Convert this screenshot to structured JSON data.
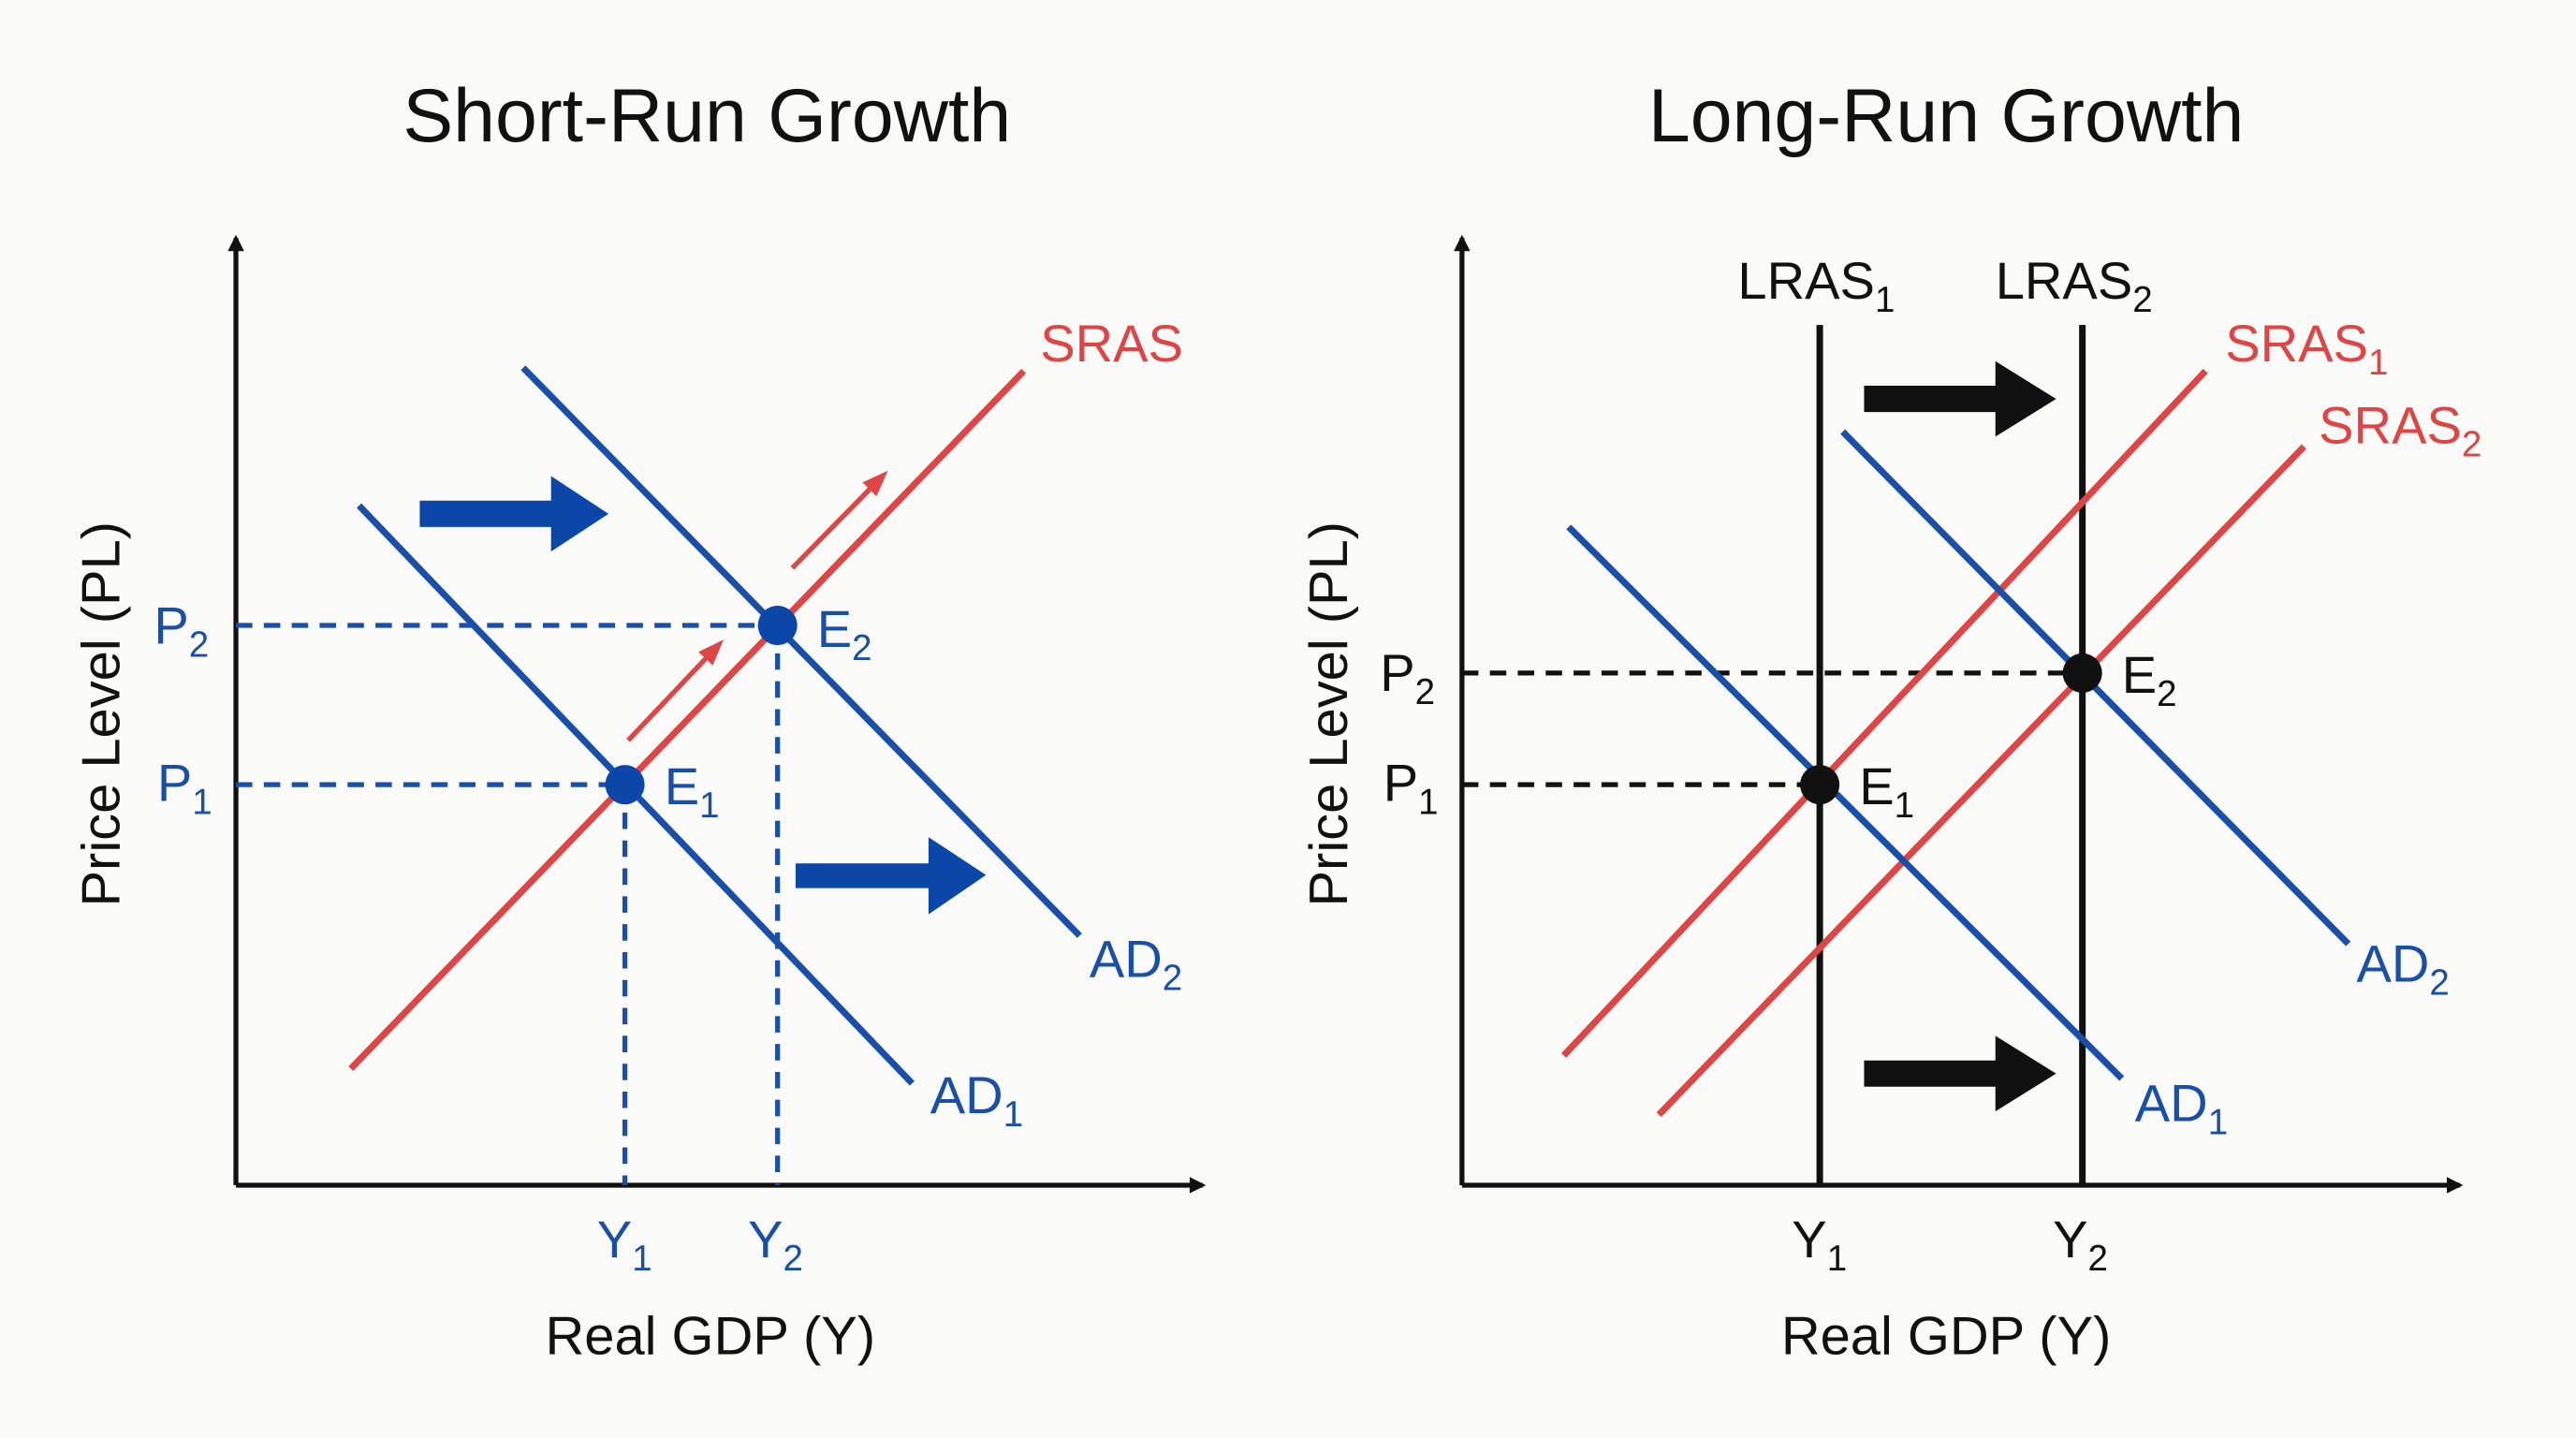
{
  "colors": {
    "ad": "#1a4fa8",
    "sras": "#e04545",
    "lras": "#111111",
    "shift_arrow_blue": "#0a47a8",
    "shift_arrow_black": "#111111",
    "background": "#fafaf8"
  },
  "short_run": {
    "title": "Short-Run Growth",
    "xlabel": "Real GDP (Y)",
    "ylabel": "Price Level (PL)",
    "sras": {
      "base": "SRAS",
      "sub": ""
    },
    "ad1": {
      "base": "AD",
      "sub": "1"
    },
    "ad2": {
      "base": "AD",
      "sub": "2"
    },
    "e1": {
      "base": "E",
      "sub": "1"
    },
    "e2": {
      "base": "E",
      "sub": "2"
    },
    "p1": {
      "base": "P",
      "sub": "1"
    },
    "p2": {
      "base": "P",
      "sub": "2"
    },
    "y1": {
      "base": "Y",
      "sub": "1"
    },
    "y2": {
      "base": "Y",
      "sub": "2"
    }
  },
  "long_run": {
    "title": "Long-Run Growth",
    "xlabel": "Real GDP (Y)",
    "ylabel": "Price Level (PL)",
    "lras1": {
      "base": "LRAS",
      "sub": "1"
    },
    "lras2": {
      "base": "LRAS",
      "sub": "2"
    },
    "sras1": {
      "base": "SRAS",
      "sub": "1"
    },
    "sras2": {
      "base": "SRAS",
      "sub": "2"
    },
    "ad1": {
      "base": "AD",
      "sub": "1"
    },
    "ad2": {
      "base": "AD",
      "sub": "2"
    },
    "e1": {
      "base": "E",
      "sub": "1"
    },
    "e2": {
      "base": "E",
      "sub": "2"
    },
    "p1": {
      "base": "P",
      "sub": "1"
    },
    "p2": {
      "base": "P",
      "sub": "2"
    },
    "y1": {
      "base": "Y",
      "sub": "1"
    },
    "y2": {
      "base": "Y",
      "sub": "2"
    }
  }
}
